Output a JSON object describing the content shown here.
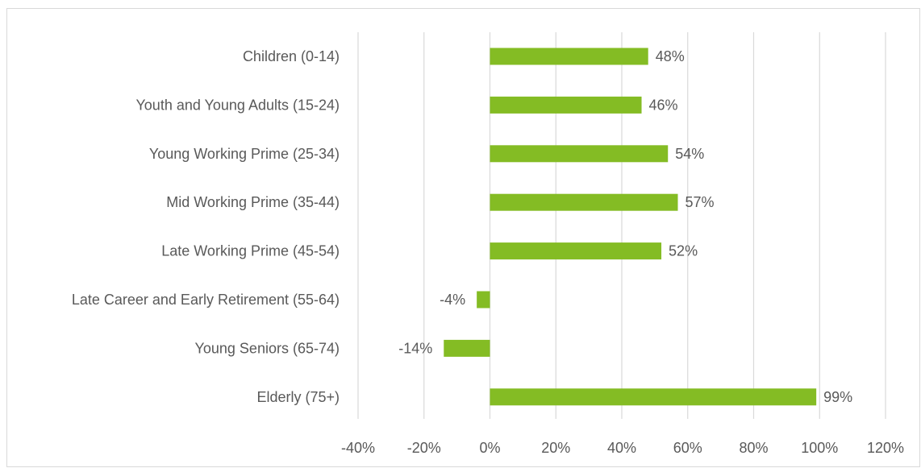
{
  "chart_data": {
    "type": "bar",
    "orientation": "horizontal",
    "title": "",
    "xlabel": "",
    "ylabel": "",
    "bar_color": "#84bc24",
    "grid": true,
    "legend": "none",
    "xlim": [
      -40,
      120
    ],
    "x_ticks": [
      -40,
      -20,
      0,
      20,
      40,
      60,
      80,
      100,
      120
    ],
    "x_tick_labels": [
      "-40%",
      "-20%",
      "0%",
      "20%",
      "40%",
      "60%",
      "80%",
      "100%",
      "120%"
    ],
    "categories": [
      "Children (0-14)",
      "Youth and Young Adults (15-24)",
      "Young Working Prime (25-34)",
      "Mid Working Prime (35-44)",
      "Late Working Prime (45-54)",
      "Late Career and Early Retirement (55-64)",
      "Young Seniors (65-74)",
      "Elderly (75+)"
    ],
    "values": [
      48,
      46,
      54,
      57,
      52,
      -4,
      -14,
      99
    ],
    "data_labels": [
      "48%",
      "46%",
      "54%",
      "57%",
      "52%",
      "-4%",
      "-14%",
      "99%"
    ]
  }
}
